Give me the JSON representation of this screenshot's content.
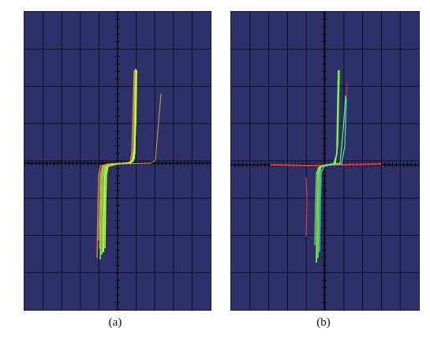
{
  "panels": [
    {
      "caption": "(a)"
    },
    {
      "caption": "(b)"
    }
  ],
  "colors": {
    "screen_background": "#2e3169",
    "grid": "#0d0e26",
    "axis": "#000000",
    "trace_green": "#7cf04a",
    "trace_bright": "#c8ff3c",
    "trace_orange": "#e8902a",
    "trace_red": "#e83a3a",
    "trace_cyan": "#4ad0d8"
  }
}
